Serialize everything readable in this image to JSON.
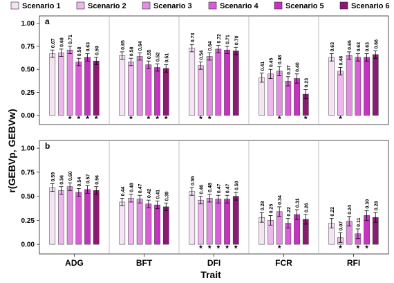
{
  "chart_data": {
    "type": "bar",
    "title": "",
    "xlabel": "Trait",
    "ylabel": "r(GEBVp, GEBVw)",
    "ylim": [
      -0.1,
      1.08
    ],
    "yticks": [
      "1.00",
      "0.75",
      "0.50",
      "0.25",
      "0.00"
    ],
    "categories": [
      "ADG",
      "BFT",
      "DFI",
      "FCR",
      "RFI"
    ],
    "legend_placement": "top",
    "series_names": [
      "Scenario 1",
      "Scenario 2",
      "Scenario 3",
      "Scenario 4",
      "Scenario 5",
      "Scenario 6"
    ],
    "series_colors": [
      "#f6e3f6",
      "#eeb7ee",
      "#e28fe2",
      "#d85ed8",
      "#c832c3",
      "#8a1a72"
    ],
    "panels": [
      {
        "label": "a",
        "values": [
          [
            0.67,
            0.68,
            0.71,
            0.58,
            0.63,
            0.59
          ],
          [
            0.65,
            0.58,
            0.64,
            0.55,
            0.52,
            0.51
          ],
          [
            0.73,
            0.54,
            0.64,
            0.72,
            0.71,
            0.7
          ],
          [
            0.41,
            0.45,
            0.48,
            0.37,
            0.4,
            0.23
          ],
          [
            0.63,
            0.48,
            0.65,
            0.63,
            0.63,
            0.66
          ]
        ],
        "labels": [
          [
            "0.67",
            "0.68",
            "0.71",
            "0.58",
            "0.63",
            "0.59"
          ],
          [
            "0.65",
            "0.58",
            "0.64",
            "0.55",
            "0.52",
            "0.51"
          ],
          [
            "0.73",
            "0.54",
            "0.64",
            "0.72",
            "0.71",
            "0.70"
          ],
          [
            "0.41",
            "0.45",
            "0.48",
            "0.37",
            "0.40",
            "0.23"
          ],
          [
            "0.63",
            "0.48",
            "0.65",
            "0.63",
            "0.63",
            "0.66"
          ]
        ],
        "errors": [
          [
            0.04,
            0.04,
            0.04,
            0.04,
            0.04,
            0.04
          ],
          [
            0.04,
            0.04,
            0.04,
            0.04,
            0.04,
            0.04
          ],
          [
            0.04,
            0.04,
            0.04,
            0.04,
            0.04,
            0.04
          ],
          [
            0.05,
            0.05,
            0.05,
            0.05,
            0.05,
            0.05
          ],
          [
            0.04,
            0.04,
            0.04,
            0.04,
            0.04,
            0.04
          ]
        ],
        "significant": [
          [
            false,
            false,
            true,
            true,
            true,
            true
          ],
          [
            false,
            true,
            false,
            true,
            true,
            true
          ],
          [
            false,
            true,
            true,
            false,
            false,
            false
          ],
          [
            false,
            false,
            true,
            false,
            false,
            true
          ],
          [
            false,
            true,
            false,
            false,
            false,
            false
          ]
        ]
      },
      {
        "label": "b",
        "values": [
          [
            0.59,
            0.56,
            0.6,
            0.54,
            0.57,
            0.56
          ],
          [
            0.44,
            0.48,
            0.47,
            0.42,
            0.41,
            0.39
          ],
          [
            0.55,
            0.46,
            0.48,
            0.47,
            0.47,
            0.5
          ],
          [
            0.28,
            0.25,
            0.34,
            0.22,
            0.31,
            0.26
          ],
          [
            0.22,
            0.07,
            0.24,
            0.11,
            0.3,
            0.28
          ]
        ],
        "labels": [
          [
            "0.59",
            "0.56",
            "0.60",
            "0.54",
            "0.57",
            "0.56"
          ],
          [
            "0.44",
            "0.48",
            "0.47",
            "0.42",
            "0.41",
            "0.39"
          ],
          [
            "0.55",
            "0.46",
            "0.48",
            "0.47",
            "0.47",
            "0.50"
          ],
          [
            "0.28",
            "0.25",
            "0.34",
            "0.22",
            "0.31",
            "0.26"
          ],
          [
            "0.22",
            "0.07",
            "0.24",
            "0.11",
            "0.30",
            "0.28"
          ]
        ],
        "errors": [
          [
            0.04,
            0.04,
            0.04,
            0.04,
            0.04,
            0.04
          ],
          [
            0.04,
            0.04,
            0.04,
            0.04,
            0.04,
            0.04
          ],
          [
            0.04,
            0.04,
            0.04,
            0.04,
            0.04,
            0.04
          ],
          [
            0.05,
            0.05,
            0.05,
            0.05,
            0.05,
            0.05
          ],
          [
            0.05,
            0.05,
            0.05,
            0.05,
            0.05,
            0.05
          ]
        ],
        "significant": [
          [
            false,
            false,
            false,
            false,
            false,
            false
          ],
          [
            false,
            false,
            false,
            false,
            false,
            false
          ],
          [
            false,
            true,
            true,
            true,
            true,
            true
          ],
          [
            false,
            false,
            true,
            false,
            false,
            false
          ],
          [
            false,
            true,
            false,
            true,
            true,
            false
          ]
        ]
      }
    ],
    "significance_marker": "*"
  }
}
